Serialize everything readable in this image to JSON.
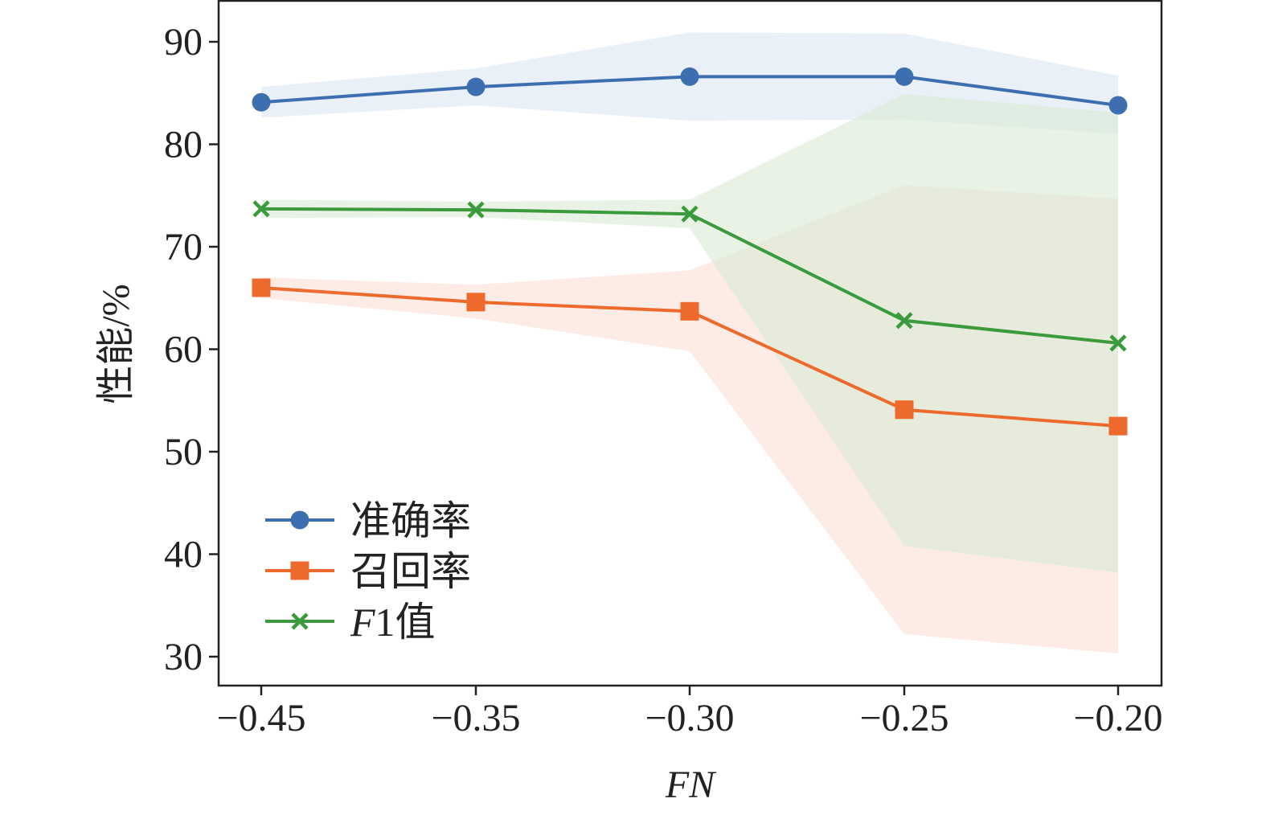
{
  "chart_data": {
    "type": "line",
    "x": [
      "−0.45",
      "−0.35",
      "−0.30",
      "−0.25",
      "−0.20"
    ],
    "x_values": [
      -0.45,
      -0.35,
      -0.3,
      -0.25,
      -0.2
    ],
    "xlabel": "FN",
    "ylabel": "性能/%",
    "ylim": [
      27,
      94
    ],
    "yticks": [
      30,
      40,
      50,
      60,
      70,
      80,
      90
    ],
    "grid": false,
    "legend_position": "bottom-left",
    "series": [
      {
        "name": "准确率",
        "marker": "circle",
        "color": "#3d6fb0",
        "band_color": "#dbe6f3",
        "values": [
          84.1,
          85.6,
          86.6,
          86.6,
          83.8
        ],
        "lower": [
          82.6,
          83.8,
          82.3,
          82.4,
          81.0
        ],
        "upper": [
          85.6,
          87.4,
          90.9,
          90.8,
          86.7
        ]
      },
      {
        "name": "召回率",
        "marker": "square",
        "color": "#ee6a2c",
        "band_color": "#fbe0d6",
        "values": [
          66.0,
          64.6,
          63.7,
          54.1,
          52.5
        ],
        "lower": [
          65.0,
          63.0,
          59.8,
          32.2,
          30.3
        ],
        "upper": [
          67.0,
          66.3,
          67.7,
          76.0,
          74.7
        ]
      },
      {
        "name_prefix": "F",
        "name_suffix": "1值",
        "marker": "x",
        "color": "#3b9a3b",
        "band_color": "#d9ebd5",
        "values": [
          73.7,
          73.6,
          73.2,
          62.8,
          60.6
        ],
        "lower": [
          72.8,
          72.9,
          71.8,
          40.8,
          38.2
        ],
        "upper": [
          74.6,
          74.4,
          74.6,
          84.9,
          83.1
        ]
      }
    ]
  }
}
